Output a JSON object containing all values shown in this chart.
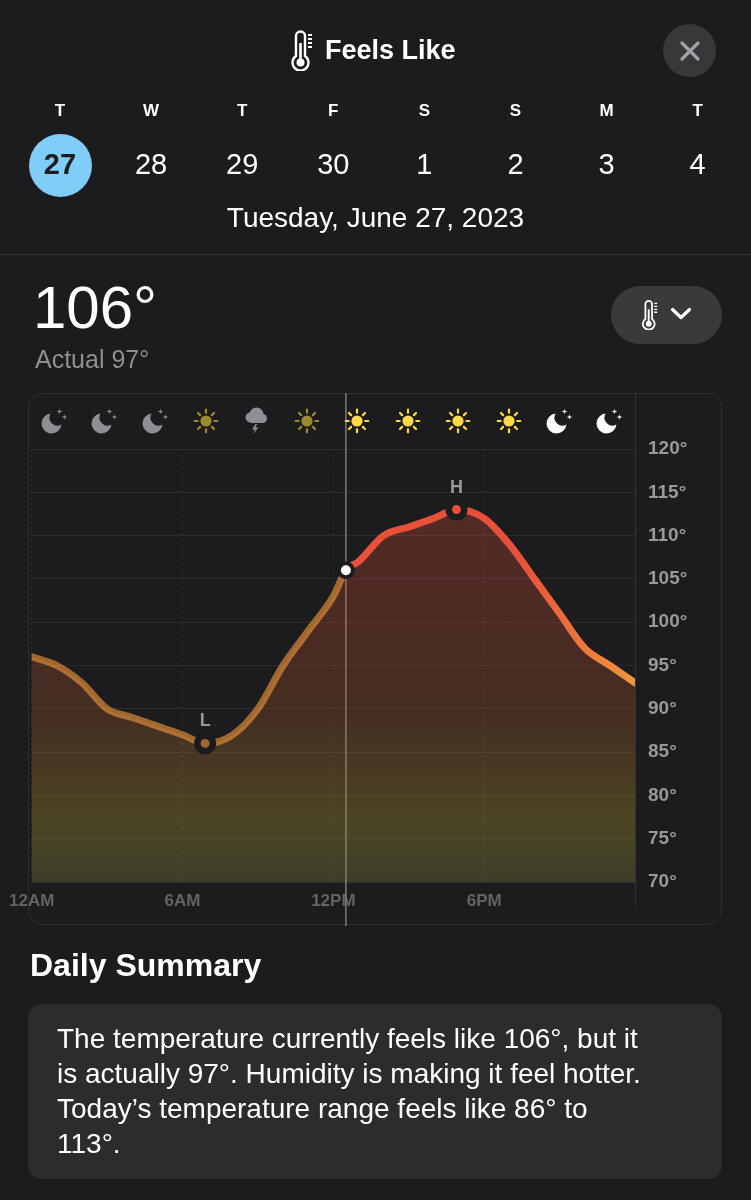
{
  "chart_data": {
    "type": "area",
    "title": "Feels Like",
    "subtitle": "Tuesday, June 27, 2023",
    "x": [
      "2023-06-27T00:00",
      "2023-06-27T01:00",
      "2023-06-27T02:00",
      "2023-06-27T03:00",
      "2023-06-27T04:00",
      "2023-06-27T05:00",
      "2023-06-27T06:00",
      "2023-06-27T06:54",
      "2023-06-27T08:00",
      "2023-06-27T09:00",
      "2023-06-27T10:00",
      "2023-06-27T11:00",
      "2023-06-27T12:00",
      "2023-06-27T12:30",
      "2023-06-27T13:00",
      "2023-06-27T14:00",
      "2023-06-27T15:00",
      "2023-06-27T16:00",
      "2023-06-27T16:54",
      "2023-06-27T18:00",
      "2023-06-27T19:00",
      "2023-06-27T20:00",
      "2023-06-27T21:00",
      "2023-06-27T22:00",
      "2023-06-27T23:00",
      "2023-06-28T00:00"
    ],
    "series": [
      {
        "color": "#e8503a",
        "values": [
          96,
          95,
          93,
          90,
          89,
          88,
          87,
          86,
          87,
          90,
          95,
          99,
          103,
          106,
          107,
          110,
          111,
          112,
          113,
          112,
          109,
          105,
          101,
          97,
          95,
          93
        ]
      },
      {
        "type": "scatter",
        "x": [
          "2023-06-27T12:30"
        ],
        "values": [
          106
        ],
        "color": "#ffffff",
        "marker": "circle"
      }
    ],
    "xlim": [
      "2023-06-27T00:00",
      "2023-06-28T00:00"
    ],
    "xticks": [
      {
        "value": "2023-06-27T00:00",
        "label": "12AM"
      },
      {
        "value": "2023-06-27T06:00",
        "label": "6AM"
      },
      {
        "value": "2023-06-27T12:00",
        "label": "12PM"
      },
      {
        "value": "2023-06-27T18:00",
        "label": "6PM"
      }
    ],
    "ylim": [
      70,
      120
    ],
    "yticks": [
      {
        "value": 70,
        "label": "70°"
      },
      {
        "value": 75,
        "label": "75°"
      },
      {
        "value": 80,
        "label": "80°"
      },
      {
        "value": 85,
        "label": "85°"
      },
      {
        "value": 90,
        "label": "90°"
      },
      {
        "value": 95,
        "label": "95°"
      },
      {
        "value": 100,
        "label": "100°"
      },
      {
        "value": 105,
        "label": "105°"
      },
      {
        "value": 110,
        "label": "110°"
      },
      {
        "value": 115,
        "label": "115°"
      },
      {
        "value": 120,
        "label": "120°"
      }
    ],
    "grid": true,
    "ref_lines": [
      {
        "axis": "x",
        "value": "2023-06-27T12:30",
        "color": "#7c7c80"
      }
    ],
    "annotations": [
      "T",
      "W",
      "T",
      "F",
      "S",
      "S",
      "M",
      "T",
      "27",
      "28",
      "29",
      "30",
      "1",
      "2",
      "3",
      "4",
      "106°",
      "Actual 97°",
      {
        "text": "H",
        "x": "2023-06-27T16:54",
        "y": 113
      },
      {
        "text": "L",
        "x": "2023-06-27T06:54",
        "y": 86
      },
      "Daily Summary",
      "The temperature currently feels like 106°, but it is actually 97°. Humidity is making it feel hotter. Today’s temperature range feels like 86° to 113°."
    ]
  }
}
